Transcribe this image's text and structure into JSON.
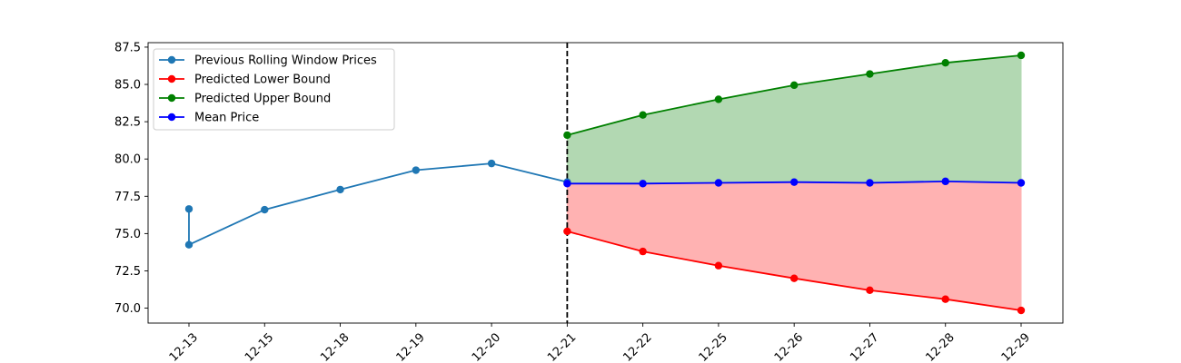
{
  "chart_data": {
    "type": "line",
    "title": "",
    "xlabel": "",
    "ylabel": "",
    "categories": [
      "12-13",
      "12-15",
      "12-18",
      "12-19",
      "12-20",
      "12-21",
      "12-22",
      "12-25",
      "12-26",
      "12-27",
      "12-28",
      "12-29"
    ],
    "ylim": [
      69.0,
      87.8
    ],
    "yticks": [
      "70.0",
      "72.5",
      "75.0",
      "77.5",
      "80.0",
      "82.5",
      "85.0",
      "87.5"
    ],
    "grid": false,
    "legend_position": "top-left",
    "divider_at": "12-21",
    "series": [
      {
        "name": "Previous Rolling Window Prices",
        "color": "#1f77b4",
        "points": [
          {
            "x": "12-13",
            "y": 76.65
          },
          {
            "x": "12-13",
            "y": 74.25
          },
          {
            "x": "12-15",
            "y": 76.6
          },
          {
            "x": "12-18",
            "y": 77.95
          },
          {
            "x": "12-19",
            "y": 79.25
          },
          {
            "x": "12-20",
            "y": 79.7
          },
          {
            "x": "12-21",
            "y": 78.45
          }
        ]
      },
      {
        "name": "Predicted Lower Bound",
        "color": "#ff0000",
        "fill": "#ffb2b2",
        "points": [
          {
            "x": "12-21",
            "y": 75.15
          },
          {
            "x": "12-22",
            "y": 73.8
          },
          {
            "x": "12-25",
            "y": 72.85
          },
          {
            "x": "12-26",
            "y": 72.0
          },
          {
            "x": "12-27",
            "y": 71.2
          },
          {
            "x": "12-28",
            "y": 70.6
          },
          {
            "x": "12-29",
            "y": 69.85
          }
        ]
      },
      {
        "name": "Predicted Upper Bound",
        "color": "#008000",
        "fill": "#b2d8b2",
        "points": [
          {
            "x": "12-21",
            "y": 81.6
          },
          {
            "x": "12-22",
            "y": 82.95
          },
          {
            "x": "12-25",
            "y": 84.0
          },
          {
            "x": "12-26",
            "y": 84.95
          },
          {
            "x": "12-27",
            "y": 85.7
          },
          {
            "x": "12-28",
            "y": 86.45
          },
          {
            "x": "12-29",
            "y": 86.95
          }
        ]
      },
      {
        "name": "Mean Price",
        "color": "#0000ff",
        "points": [
          {
            "x": "12-21",
            "y": 78.35
          },
          {
            "x": "12-22",
            "y": 78.35
          },
          {
            "x": "12-25",
            "y": 78.4
          },
          {
            "x": "12-26",
            "y": 78.45
          },
          {
            "x": "12-27",
            "y": 78.4
          },
          {
            "x": "12-28",
            "y": 78.5
          },
          {
            "x": "12-29",
            "y": 78.4
          }
        ]
      }
    ]
  }
}
